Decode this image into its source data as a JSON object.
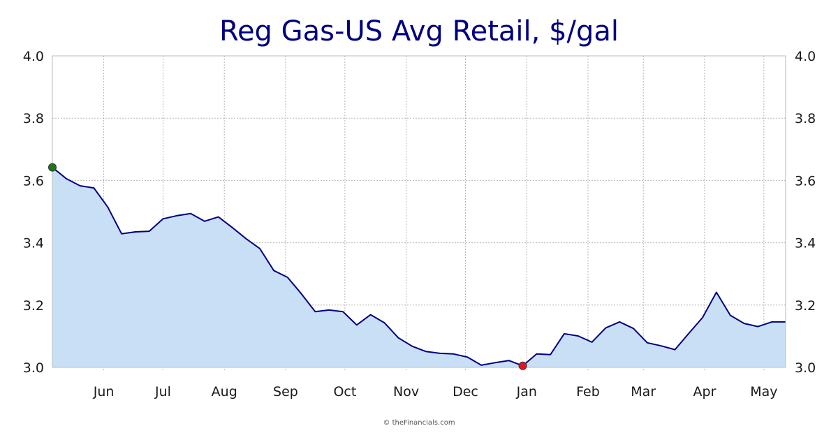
{
  "chart_data": {
    "type": "area",
    "title": "Reg Gas-US Avg Retail, $/gal",
    "xlabel": "",
    "ylabel": "",
    "ylim": [
      3.0,
      4.0
    ],
    "yticks": [
      "3.0",
      "3.2",
      "3.4",
      "3.6",
      "3.8",
      "4.0"
    ],
    "xlim": [
      "2024-05-06",
      "2025-05-12"
    ],
    "xticks": [
      {
        "label": "Jun",
        "date": "2024-06-01"
      },
      {
        "label": "Jul",
        "date": "2024-07-01"
      },
      {
        "label": "Aug",
        "date": "2024-08-01"
      },
      {
        "label": "Sep",
        "date": "2024-09-01"
      },
      {
        "label": "Oct",
        "date": "2024-10-01"
      },
      {
        "label": "Nov",
        "date": "2024-11-01"
      },
      {
        "label": "Dec",
        "date": "2024-12-01"
      },
      {
        "label": "Jan",
        "date": "2025-01-01"
      },
      {
        "label": "Feb",
        "date": "2025-02-01"
      },
      {
        "label": "Mar",
        "date": "2025-03-01"
      },
      {
        "label": "Apr",
        "date": "2025-04-01"
      },
      {
        "label": "May",
        "date": "2025-05-01"
      }
    ],
    "grid": true,
    "series": [
      {
        "x": [
          "2024-05-06",
          "2024-05-13",
          "2024-05-20",
          "2024-05-27",
          "2024-06-03",
          "2024-06-10",
          "2024-06-17",
          "2024-06-24",
          "2024-07-01",
          "2024-07-08",
          "2024-07-15",
          "2024-07-22",
          "2024-07-29",
          "2024-08-05",
          "2024-08-12",
          "2024-08-19",
          "2024-08-26",
          "2024-09-02",
          "2024-09-09",
          "2024-09-16",
          "2024-09-23",
          "2024-09-30",
          "2024-10-07",
          "2024-10-14",
          "2024-10-21",
          "2024-10-28",
          "2024-11-04",
          "2024-11-11",
          "2024-11-18",
          "2024-11-25",
          "2024-12-02",
          "2024-12-09",
          "2024-12-16",
          "2024-12-23",
          "2024-12-30",
          "2025-01-06",
          "2025-01-13",
          "2025-01-20",
          "2025-01-27",
          "2025-02-03",
          "2025-02-10",
          "2025-02-17",
          "2025-02-24",
          "2025-03-03",
          "2025-03-10",
          "2025-03-17",
          "2025-03-24",
          "2025-03-31",
          "2025-04-07",
          "2025-04-14",
          "2025-04-21",
          "2025-04-28",
          "2025-05-05",
          "2025-05-12"
        ],
        "values": [
          3.642,
          3.606,
          3.583,
          3.576,
          3.515,
          3.429,
          3.435,
          3.437,
          3.477,
          3.487,
          3.494,
          3.469,
          3.483,
          3.449,
          3.413,
          3.381,
          3.311,
          3.289,
          3.236,
          3.179,
          3.184,
          3.179,
          3.136,
          3.169,
          3.143,
          3.095,
          3.068,
          3.051,
          3.045,
          3.043,
          3.033,
          3.007,
          3.015,
          3.022,
          3.005,
          3.043,
          3.041,
          3.108,
          3.101,
          3.081,
          3.127,
          3.146,
          3.125,
          3.079,
          3.069,
          3.057,
          3.109,
          3.16,
          3.241,
          3.167,
          3.141,
          3.131,
          3.146,
          3.146
        ]
      }
    ],
    "markers": {
      "high": {
        "date": "2024-05-06",
        "value": 3.642,
        "color": "#1a7a1a"
      },
      "low": {
        "date": "2024-12-30",
        "value": 3.005,
        "color": "#e8101c"
      }
    },
    "colors": {
      "line": "#000080",
      "fill": "#c8dff6",
      "title": "#000080"
    }
  },
  "credit": "© theFinancials.com"
}
